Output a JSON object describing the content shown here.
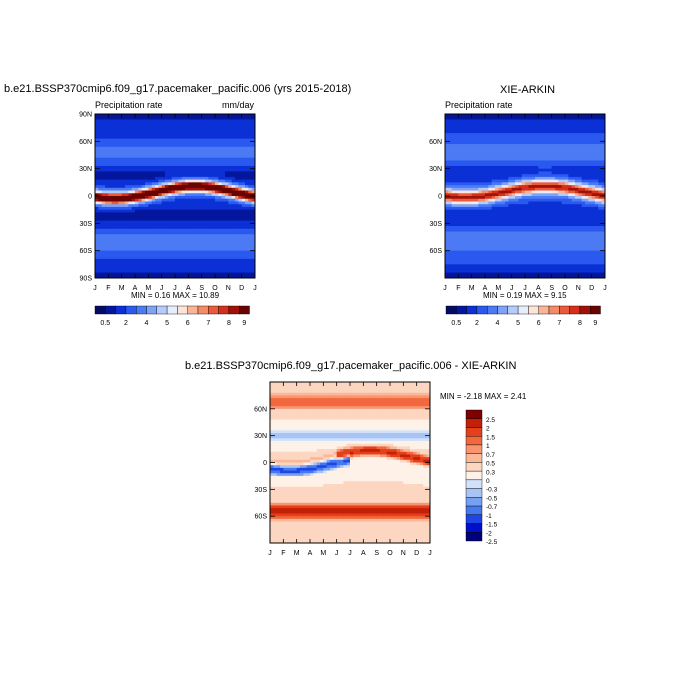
{
  "colors": {
    "prec": [
      "#020c64",
      "#04169c",
      "#0b30d6",
      "#2a59f0",
      "#4b7af4",
      "#7ea2f8",
      "#b4cbfb",
      "#e6eefd",
      "#fde4d8",
      "#fbb496",
      "#f58a66",
      "#eb5a3a",
      "#d4301c",
      "#a01208",
      "#6a0402"
    ],
    "diff": [
      "#00007e",
      "#0010c8",
      "#1e46e6",
      "#4678ee",
      "#78a0f2",
      "#a8c4f6",
      "#d2e2fa",
      "#fef2e8",
      "#fcd6c0",
      "#fab898",
      "#f89470",
      "#f2683e",
      "#e4401c",
      "#c42008",
      "#7e0000"
    ]
  },
  "panel1": {
    "title": "b.e21.BSSP370cmip6.f09_g17.pacemaker_pacific.006 (yrs 2015-2018)",
    "left_label": "Precipitation rate",
    "right_label": "mm/day",
    "minmax": "MIN =   0.16 MAX =   10.89"
  },
  "panel2": {
    "title": "XIE-ARKIN",
    "left_label": "Precipitation rate",
    "minmax": "MIN =   0.19 MAX =   9.15"
  },
  "panel3": {
    "title": "b.e21.BSSP370cmip6.f09_g17.pacemaker_pacific.006 - XIE-ARKIN",
    "minmax": "MIN =  -2.18 MAX =   2.41"
  },
  "chart_data": [
    {
      "type": "heatmap",
      "title": "b.e21.BSSP370cmip6.f09_g17.pacemaker_pacific.006 (yrs 2015-2018)",
      "subtitle_left": "Precipitation rate",
      "units": "mm/day",
      "x_ticks": [
        "J",
        "F",
        "M",
        "A",
        "M",
        "J",
        "J",
        "A",
        "S",
        "O",
        "N",
        "D",
        "J"
      ],
      "y_ticks": [
        "90N",
        "60N",
        "30N",
        "0",
        "30S",
        "60S",
        "90S"
      ],
      "ylim": [
        -90,
        90
      ],
      "colorbar_labels": [
        "0.5",
        "2",
        "4",
        "5",
        "6",
        "7",
        "8",
        "9"
      ],
      "min": 0.16,
      "max": 10.89
    },
    {
      "type": "heatmap",
      "title": "XIE-ARKIN",
      "subtitle_left": "Precipitation rate",
      "x_ticks": [
        "J",
        "F",
        "M",
        "A",
        "M",
        "J",
        "J",
        "A",
        "S",
        "O",
        "N",
        "D",
        "J"
      ],
      "y_ticks": [
        "60N",
        "30N",
        "0",
        "30S",
        "60S"
      ],
      "ylim": [
        -90,
        90
      ],
      "colorbar_labels": [
        "0.5",
        "2",
        "4",
        "5",
        "6",
        "7",
        "8",
        "9"
      ],
      "min": 0.19,
      "max": 9.15
    },
    {
      "type": "heatmap",
      "title": "b.e21.BSSP370cmip6.f09_g17.pacemaker_pacific.006 - XIE-ARKIN",
      "x_ticks": [
        "J",
        "F",
        "M",
        "A",
        "M",
        "J",
        "J",
        "A",
        "S",
        "O",
        "N",
        "D",
        "J"
      ],
      "y_ticks": [
        "60N",
        "30N",
        "0",
        "30S",
        "60S"
      ],
      "ylim": [
        -90,
        90
      ],
      "colorbar_labels": [
        "2.5",
        "2",
        "1.5",
        "1",
        "0.7",
        "0.5",
        "0.3",
        "0",
        "-0.3",
        "-0.5",
        "-0.7",
        "-1",
        "-1.5",
        "-2",
        "-2.5"
      ],
      "min": -2.18,
      "max": 2.41
    }
  ]
}
